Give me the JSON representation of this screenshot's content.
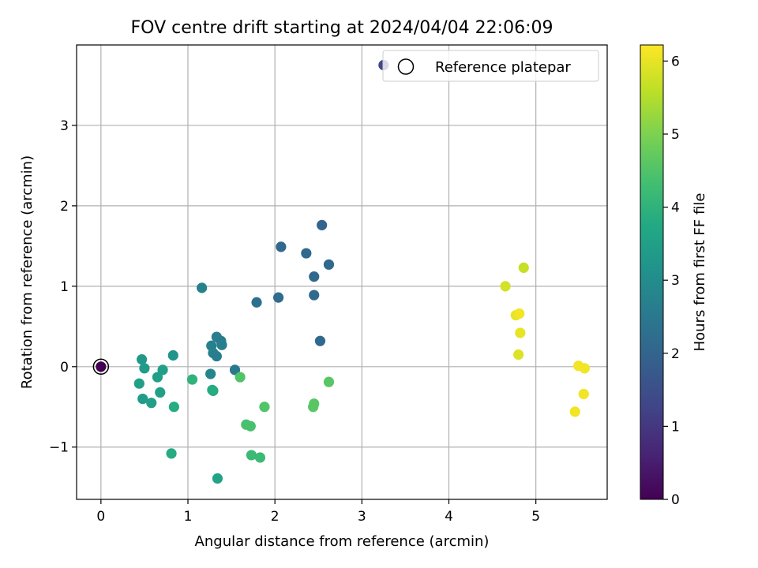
{
  "chart_data": {
    "type": "scatter",
    "title": "FOV centre drift starting at 2024/04/04 22:06:09",
    "xlabel": "Angular distance from reference (arcmin)",
    "ylabel": "Rotation from reference (arcmin)",
    "xlim": [
      -0.28,
      5.82
    ],
    "ylim": [
      -1.65,
      4.0
    ],
    "xticks": [
      0,
      1,
      2,
      3,
      4,
      5
    ],
    "yticks": [
      -1,
      0,
      1,
      2,
      3
    ],
    "grid": true,
    "legend": {
      "position": "top-right",
      "entries": [
        "Reference platepar"
      ]
    },
    "reference_point": {
      "x": 0,
      "y": 0
    },
    "colorbar": {
      "label": "Hours from first FF file",
      "colormap": "viridis",
      "range": [
        0,
        6.22
      ],
      "ticks": [
        0,
        1,
        2,
        3,
        4,
        5,
        6
      ]
    },
    "points": [
      {
        "x": 0.0,
        "y": 0.0,
        "c": 0.0
      },
      {
        "x": 3.25,
        "y": 3.75,
        "c": 1.3
      },
      {
        "x": 2.54,
        "y": 1.76,
        "c": 2.0
      },
      {
        "x": 2.07,
        "y": 1.49,
        "c": 2.1
      },
      {
        "x": 2.36,
        "y": 1.41,
        "c": 2.1
      },
      {
        "x": 2.62,
        "y": 1.27,
        "c": 2.1
      },
      {
        "x": 2.45,
        "y": 1.12,
        "c": 2.1
      },
      {
        "x": 2.45,
        "y": 0.89,
        "c": 2.1
      },
      {
        "x": 2.04,
        "y": 0.86,
        "c": 2.2
      },
      {
        "x": 1.79,
        "y": 0.8,
        "c": 2.3
      },
      {
        "x": 2.52,
        "y": 0.32,
        "c": 2.1
      },
      {
        "x": 1.16,
        "y": 0.98,
        "c": 2.7
      },
      {
        "x": 1.33,
        "y": 0.37,
        "c": 2.6
      },
      {
        "x": 1.38,
        "y": 0.32,
        "c": 2.6
      },
      {
        "x": 1.27,
        "y": 0.26,
        "c": 2.7
      },
      {
        "x": 1.39,
        "y": 0.27,
        "c": 2.6
      },
      {
        "x": 1.29,
        "y": 0.17,
        "c": 2.7
      },
      {
        "x": 1.33,
        "y": 0.13,
        "c": 2.6
      },
      {
        "x": 1.54,
        "y": -0.04,
        "c": 2.5
      },
      {
        "x": 1.26,
        "y": -0.09,
        "c": 2.8
      },
      {
        "x": 0.83,
        "y": 0.14,
        "c": 3.2
      },
      {
        "x": 0.47,
        "y": 0.09,
        "c": 3.3
      },
      {
        "x": 0.5,
        "y": -0.02,
        "c": 3.4
      },
      {
        "x": 0.71,
        "y": -0.04,
        "c": 3.5
      },
      {
        "x": 0.65,
        "y": -0.13,
        "c": 3.5
      },
      {
        "x": 0.44,
        "y": -0.21,
        "c": 3.5
      },
      {
        "x": 0.68,
        "y": -0.32,
        "c": 3.5
      },
      {
        "x": 0.48,
        "y": -0.4,
        "c": 3.4
      },
      {
        "x": 0.58,
        "y": -0.45,
        "c": 3.5
      },
      {
        "x": 0.84,
        "y": -0.5,
        "c": 3.8
      },
      {
        "x": 1.05,
        "y": -0.16,
        "c": 4.0
      },
      {
        "x": 1.28,
        "y": -0.29,
        "c": 3.8
      },
      {
        "x": 1.29,
        "y": -0.3,
        "c": 3.8
      },
      {
        "x": 0.81,
        "y": -1.08,
        "c": 3.8
      },
      {
        "x": 1.34,
        "y": -1.39,
        "c": 3.6
      },
      {
        "x": 1.6,
        "y": -0.13,
        "c": 4.5
      },
      {
        "x": 1.88,
        "y": -0.5,
        "c": 4.5
      },
      {
        "x": 1.67,
        "y": -0.72,
        "c": 4.4
      },
      {
        "x": 1.72,
        "y": -0.74,
        "c": 4.4
      },
      {
        "x": 1.73,
        "y": -1.1,
        "c": 4.2
      },
      {
        "x": 1.83,
        "y": -1.13,
        "c": 4.2
      },
      {
        "x": 2.62,
        "y": -0.19,
        "c": 4.6
      },
      {
        "x": 2.45,
        "y": -0.46,
        "c": 4.6
      },
      {
        "x": 2.44,
        "y": -0.5,
        "c": 4.6
      },
      {
        "x": 4.65,
        "y": 1.0,
        "c": 5.8
      },
      {
        "x": 4.86,
        "y": 1.23,
        "c": 5.7
      },
      {
        "x": 4.77,
        "y": 0.64,
        "c": 6.0
      },
      {
        "x": 4.81,
        "y": 0.66,
        "c": 6.1
      },
      {
        "x": 4.82,
        "y": 0.42,
        "c": 6.0
      },
      {
        "x": 4.8,
        "y": 0.15,
        "c": 5.9
      },
      {
        "x": 5.49,
        "y": 0.01,
        "c": 6.1
      },
      {
        "x": 5.56,
        "y": -0.02,
        "c": 6.1
      },
      {
        "x": 5.55,
        "y": -0.34,
        "c": 6.1
      },
      {
        "x": 5.45,
        "y": -0.56,
        "c": 6.1
      }
    ]
  }
}
